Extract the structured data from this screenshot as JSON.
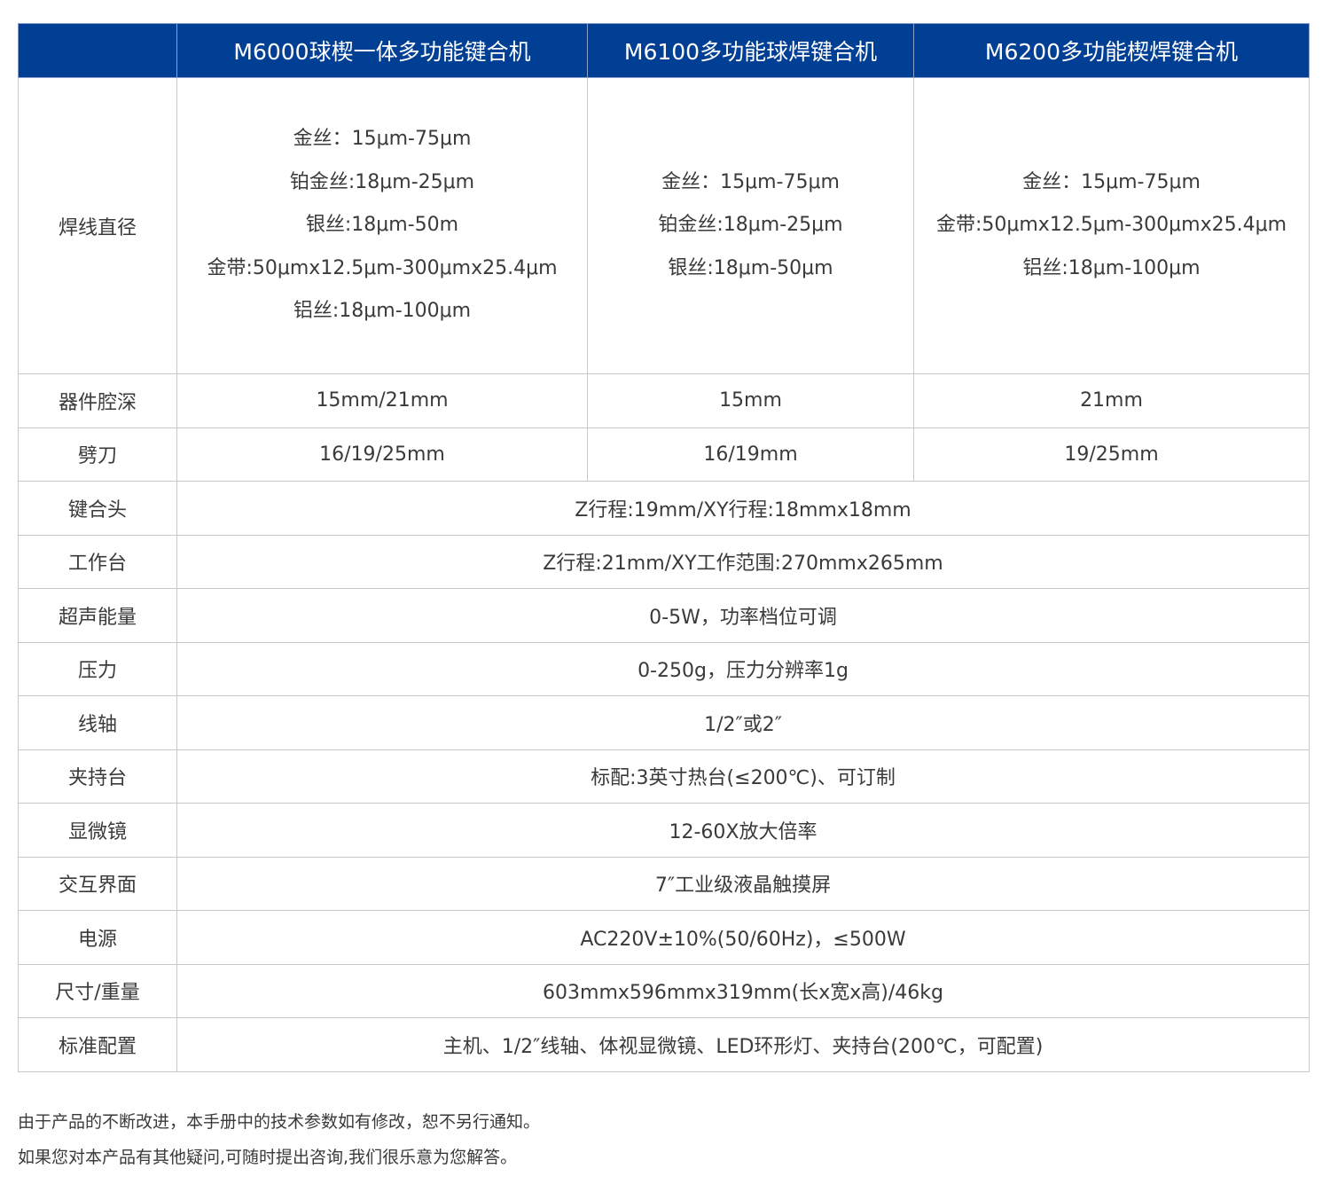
{
  "header": {
    "blank": "",
    "models": [
      "M6000球楔一体多功能键合机",
      "M6100多功能球焊键合机",
      "M6200多功能楔焊键合机"
    ]
  },
  "rows": {
    "wire_diameter": {
      "label": "焊线直径",
      "m6000": [
        "金丝：15μm-75μm",
        "铂金丝:18μm-25μm",
        "银丝:18μm-50m",
        "金带:50μmx12.5μm-300μmx25.4μm",
        "铝丝:18μm-100μm"
      ],
      "m6100": [
        "金丝：15μm-75μm",
        "铂金丝:18μm-25μm",
        "银丝:18μm-50μm"
      ],
      "m6200": [
        "金丝：15μm-75μm",
        "金带:50μmx12.5μm-300μmx25.4μm",
        "铝丝:18μm-100μm"
      ]
    },
    "cavity_depth": {
      "label": "器件腔深",
      "values": [
        "15mm/21mm",
        "15mm",
        "21mm"
      ]
    },
    "wedge": {
      "label": "劈刀",
      "values": [
        "16/19/25mm",
        "16/19mm",
        "19/25mm"
      ]
    },
    "bond_head": {
      "label": "键合头",
      "value": "Z行程:19mm/XY行程:18mmx18mm"
    },
    "worktable": {
      "label": "工作台",
      "value": "Z行程:21mm/XY工作范围:270mmx265mm"
    },
    "ultrasonic": {
      "label": "超声能量",
      "value": "0-5W，功率档位可调"
    },
    "force": {
      "label": "压力",
      "value": "0-250g，压力分辨率1g"
    },
    "spool": {
      "label": "线轴",
      "value": "1/2″或2″"
    },
    "clamp": {
      "label": "夹持台",
      "value": "标配:3英寸热台(≤200℃)、可订制"
    },
    "microscope": {
      "label": "显微镜",
      "value": "12-60X放大倍率"
    },
    "interface": {
      "label": "交互界面",
      "value": "7″工业级液晶触摸屏"
    },
    "power": {
      "label": "电源",
      "value": "AC220V±10%(50/60Hz)，≤500W"
    },
    "size_weight": {
      "label": "尺寸/重量",
      "value": "603mmx596mmx319mm(长x宽x高)/46kg"
    },
    "standard": {
      "label": "标准配置",
      "value": "主机、1/2″线轴、体视显微镜、LED环形灯、夹持台(200℃，可配置)"
    }
  },
  "notes": [
    "由于产品的不断改进，本手册中的技术参数如有修改，恕不另行通知。",
    "如果您对本产品有其他疑问,可随时提出咨询,我们很乐意为您解答。"
  ],
  "colors": {
    "header_bg": "#003f94",
    "header_text": "#ffffff",
    "border": "#c8c8c8"
  }
}
